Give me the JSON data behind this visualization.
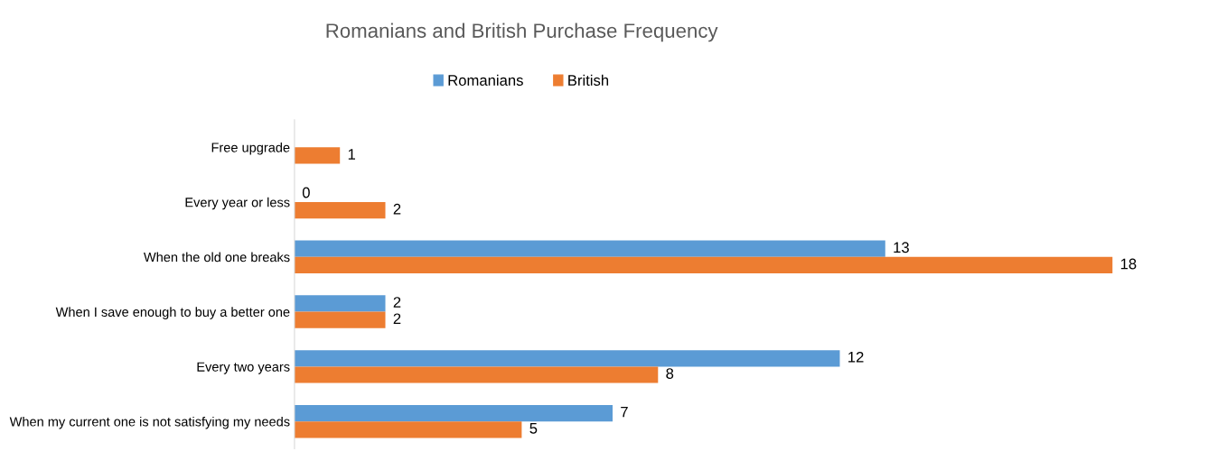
{
  "chart_data": {
    "type": "bar",
    "orientation": "horizontal",
    "title": "Romanians and British Purchase Frequency",
    "categories": [
      "Free upgrade",
      "Every year or less",
      "When the old one breaks",
      "When I save enough to buy a better one",
      "Every two years",
      "When my current one is not satisfying my needs"
    ],
    "series": [
      {
        "name": "Romanians",
        "color": "#5b9bd5",
        "values": [
          null,
          0,
          13,
          2,
          12,
          7
        ]
      },
      {
        "name": "British",
        "color": "#ed7d31",
        "values": [
          1,
          2,
          18,
          2,
          8,
          5
        ]
      }
    ],
    "data_labels": true,
    "legend": "top",
    "grid": false
  }
}
